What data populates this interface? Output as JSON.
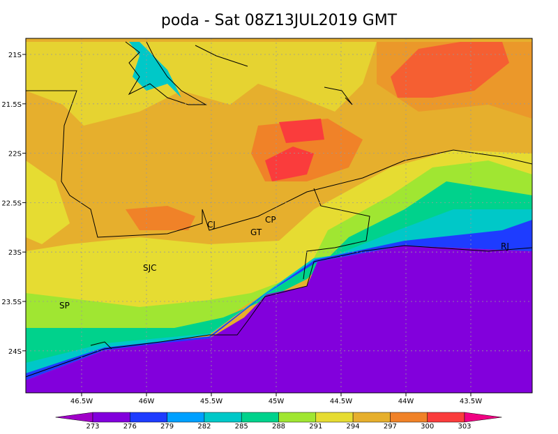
{
  "title": "poda - Sat 08Z13JUL2019 GMT",
  "map": {
    "lat_ticks": [
      {
        "value": -21,
        "label": "21S"
      },
      {
        "value": -21.5,
        "label": "21.5S"
      },
      {
        "value": -22,
        "label": "22S"
      },
      {
        "value": -22.5,
        "label": "22.5S"
      },
      {
        "value": -23,
        "label": "23S"
      },
      {
        "value": -23.5,
        "label": "23.5S"
      },
      {
        "value": -24,
        "label": "24S"
      }
    ],
    "lon_ticks": [
      {
        "value": -46.5,
        "label": "46.5W"
      },
      {
        "value": -46,
        "label": "46W"
      },
      {
        "value": -45.5,
        "label": "45.5W"
      },
      {
        "value": -45,
        "label": "45W"
      },
      {
        "value": -44.5,
        "label": "44.5W"
      },
      {
        "value": -44,
        "label": "44W"
      },
      {
        "value": -43.5,
        "label": "43.5W"
      }
    ],
    "places": [
      "SP",
      "SJC",
      "CJ",
      "GT",
      "CP",
      "RJ"
    ]
  },
  "colorbar": {
    "levels": [
      273,
      276,
      279,
      282,
      285,
      288,
      291,
      294,
      297,
      300,
      303
    ],
    "colors": [
      "#a000c8",
      "#8200dc",
      "#1e3cff",
      "#00a0ff",
      "#00c8c8",
      "#00d28c",
      "#a0e632",
      "#e6dc32",
      "#e6af2d",
      "#f08228",
      "#fa3c3c",
      "#f00082"
    ]
  }
}
